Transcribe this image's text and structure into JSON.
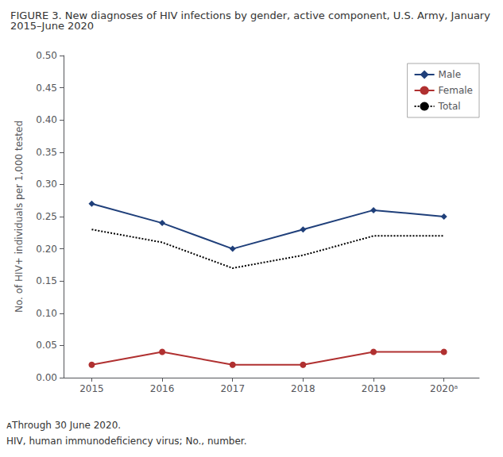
{
  "chart_data": {
    "type": "line",
    "title": "FIGURE 3. New diagnoses of HIV infections by gender, active component, U.S. Army, January 2015–June 2020",
    "x": [
      2015,
      2016,
      2017,
      2018,
      2019,
      2020
    ],
    "series": [
      {
        "name": "Male",
        "color": "#1f3f7a",
        "marker": "diamond",
        "line_style": "solid",
        "values": [
          0.27,
          0.24,
          0.2,
          0.23,
          0.26,
          0.25
        ]
      },
      {
        "name": "Female",
        "color": "#b03030",
        "marker": "circle",
        "line_style": "solid",
        "values": [
          0.02,
          0.04,
          0.02,
          0.02,
          0.04,
          0.04
        ]
      },
      {
        "name": "Total",
        "color": "#000000",
        "line_style": "dotted",
        "values": [
          0.23,
          0.21,
          0.17,
          0.19,
          0.22,
          0.22
        ]
      }
    ],
    "xlim": [
      2014.6,
      2020.5
    ],
    "xticks": [
      2015,
      2016,
      2017,
      2018,
      2019,
      {
        "value": 2020,
        "label": "2020ᵃ"
      }
    ],
    "ylabel": "No. of HIV+ individuals per 1,000 tested",
    "ylim": [
      0,
      0.5
    ],
    "yticks": [
      {
        "value": 0,
        "label": "0.00"
      },
      0.05,
      {
        "value": 0.1,
        "label": "0.10"
      },
      0.15,
      {
        "value": 0.2,
        "label": "0.20"
      },
      0.25,
      {
        "value": 0.3,
        "label": "0.30"
      },
      0.35,
      {
        "value": 0.4,
        "label": "0.40"
      },
      0.45,
      {
        "value": 0.5,
        "label": "0.50"
      }
    ],
    "grid": false,
    "legend": "upper right",
    "annotations": [
      "ᴀThrough 30 June 2020.",
      "HIV, human immunodeficiency virus; No., number."
    ]
  }
}
